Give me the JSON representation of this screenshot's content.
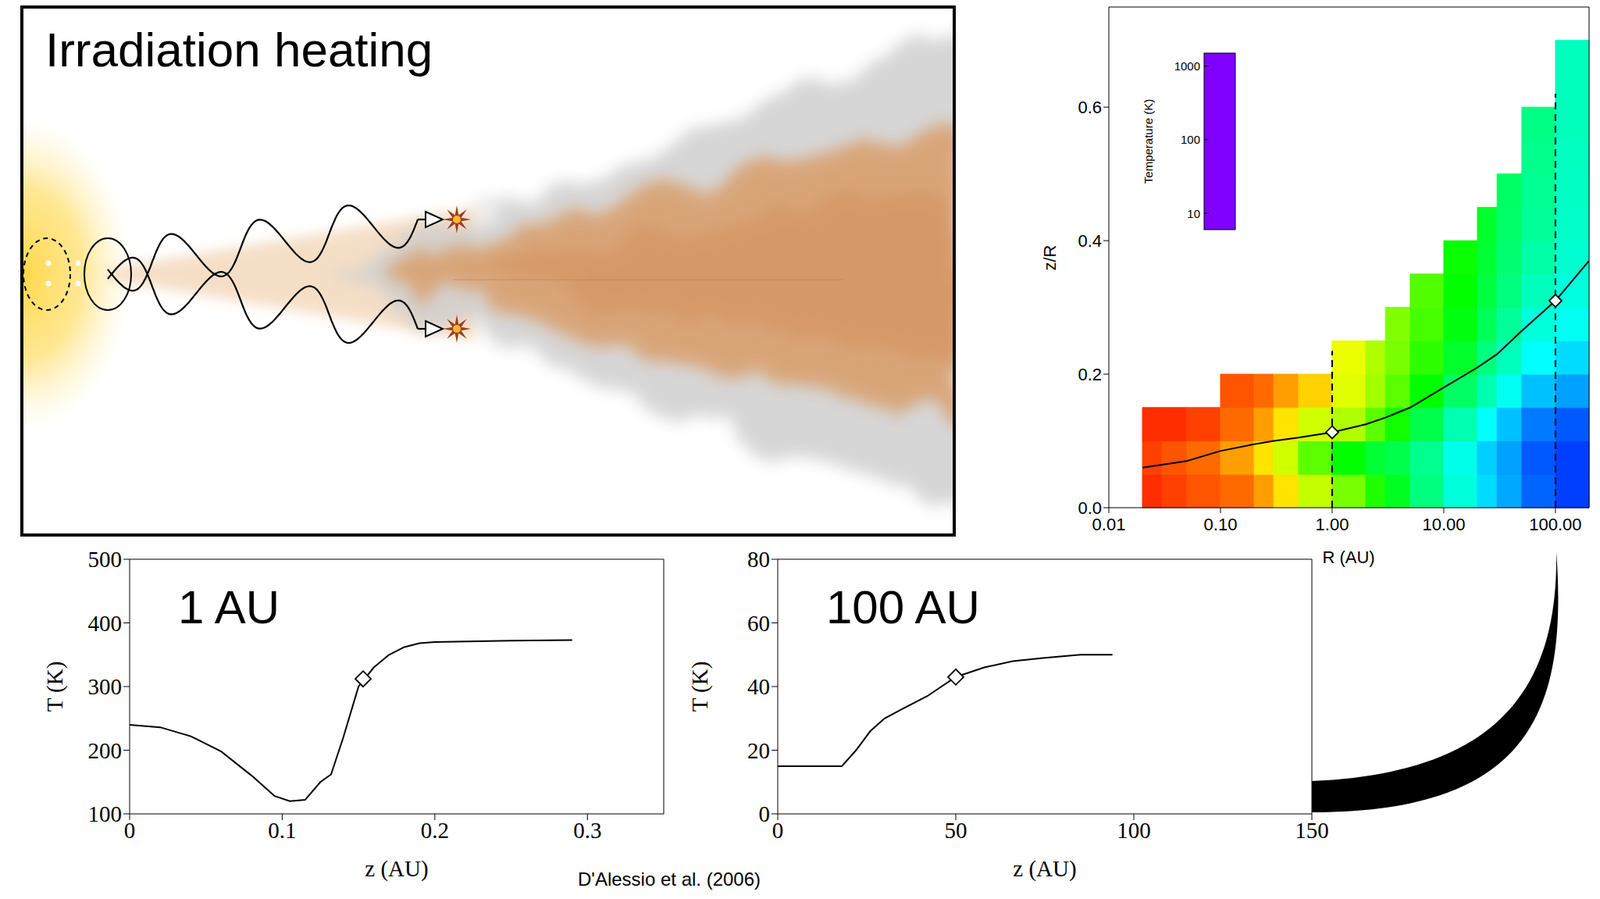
{
  "illustration": {
    "title": "Irradiation heating"
  },
  "citation": "D'Alessio et al. (2006)",
  "chart_data": [
    {
      "type": "heatmap",
      "x_label": "R (AU)",
      "y_label": "z/R",
      "log": "x",
      "xlim": [
        0.01,
        200
      ],
      "xticks": [
        0.01,
        {
          "value": 0.1,
          "label": "0.10"
        },
        {
          "value": 1,
          "label": "1.00"
        },
        {
          "value": 10,
          "label": "10.00"
        },
        {
          "value": 100,
          "label": "100.00"
        }
      ],
      "ylim": [
        0,
        0.75
      ],
      "yticks": [
        {
          "value": 0,
          "label": "0.0"
        },
        0.2,
        0.4,
        0.6
      ],
      "cells": {
        "r_edges": [
          0.02,
          0.03,
          0.05,
          0.1,
          0.2,
          0.3,
          0.5,
          1,
          2,
          3,
          5,
          10,
          20,
          30,
          50,
          100,
          200
        ],
        "z_edges": [
          0,
          0.05,
          0.1,
          0.15,
          0.2,
          0.25,
          0.3,
          0.35,
          0.4,
          0.45,
          0.5,
          0.55,
          0.6,
          0.65,
          0.7,
          0.75
        ],
        "temperature": [
          [
            1200,
            1100,
            1200
          ],
          [
            1100,
            1000,
            1200
          ],
          [
            1000,
            900,
            1100
          ],
          [
            900,
            700,
            900,
            1000
          ],
          [
            700,
            500,
            700,
            900
          ],
          [
            500,
            350,
            500,
            700
          ],
          [
            330,
            200,
            350,
            550
          ],
          [
            230,
            130,
            300,
            380,
            400
          ],
          [
            150,
            100,
            200,
            280,
            300
          ],
          [
            110,
            90,
            140,
            200,
            230,
            240
          ],
          [
            70,
            65,
            90,
            130,
            160,
            180,
            190
          ],
          [
            45,
            42,
            55,
            80,
            105,
            120,
            130,
            135
          ],
          [
            32,
            30,
            38,
            55,
            70,
            85,
            95,
            100,
            105
          ],
          [
            25,
            24,
            28,
            40,
            52,
            62,
            70,
            75,
            78,
            80
          ],
          [
            18,
            17,
            20,
            28,
            38,
            45,
            52,
            58,
            62,
            64,
            66,
            68
          ],
          [
            15,
            15,
            17,
            24,
            32,
            40,
            44,
            47,
            49,
            50,
            51,
            52,
            52,
            52
          ]
        ]
      },
      "colorbar": {
        "label": "Temperature (K)",
        "range": [
          6,
          1500
        ],
        "ticks": [
          10,
          100,
          1000
        ]
      },
      "series": [
        {
          "type": "line",
          "color": "#000000",
          "line_style": "solid",
          "x": [
            0.02,
            0.05,
            0.1,
            0.2,
            0.3,
            0.5,
            1,
            2,
            3,
            5,
            10,
            20,
            30,
            50,
            100,
            200
          ],
          "values": [
            0.06,
            0.07,
            0.085,
            0.095,
            0.1,
            0.105,
            0.113,
            0.125,
            0.135,
            0.15,
            0.18,
            0.21,
            0.23,
            0.265,
            0.31,
            0.37
          ]
        },
        {
          "type": "line",
          "color": "#000000",
          "line_style": "dashed",
          "x": [
            1,
            1
          ],
          "values": [
            0,
            0.235
          ]
        },
        {
          "type": "line",
          "color": "#000000",
          "line_style": "dashed",
          "x": [
            100,
            100
          ],
          "values": [
            0,
            0.62
          ]
        },
        {
          "type": "scatter",
          "marker": "diamond",
          "color": "#000000",
          "x": [
            1,
            100
          ],
          "values": [
            0.113,
            0.31
          ]
        }
      ]
    },
    {
      "type": "line",
      "title": "1 AU",
      "x_label": "z (AU)",
      "y_label": "T (K)",
      "xlim": [
        0,
        0.35
      ],
      "xticks": [
        0,
        0.1,
        0.2,
        0.3
      ],
      "ylim": [
        100,
        500
      ],
      "yticks": [
        100,
        200,
        300,
        400,
        500
      ],
      "series": [
        {
          "type": "line",
          "color": "#000000",
          "line_style": "solid",
          "x": [
            0,
            0.02,
            0.04,
            0.06,
            0.08,
            0.095,
            0.105,
            0.115,
            0.125,
            0.132,
            0.14,
            0.15,
            0.16,
            0.17,
            0.18,
            0.19,
            0.2,
            0.25,
            0.29
          ],
          "values": [
            240,
            236,
            222,
            198,
            160,
            128,
            120,
            122,
            150,
            162,
            220,
            300,
            330,
            350,
            362,
            368,
            370,
            372,
            373
          ]
        },
        {
          "type": "scatter",
          "marker": "diamond",
          "color": "#000000",
          "x": [
            0.153
          ],
          "values": [
            312
          ]
        }
      ]
    },
    {
      "type": "line",
      "title": "100 AU",
      "x_label": "z (AU)",
      "y_label": "T (K)",
      "xlim": [
        0,
        150
      ],
      "xticks": [
        0,
        50,
        100,
        150
      ],
      "ylim": [
        0,
        80
      ],
      "yticks": [
        0,
        20,
        40,
        60,
        80
      ],
      "series": [
        {
          "type": "line",
          "color": "#000000",
          "line_style": "solid",
          "x": [
            0,
            18,
            22,
            26,
            30,
            35,
            42,
            50,
            58,
            66,
            75,
            85,
            94
          ],
          "values": [
            15,
            15,
            20,
            26,
            30,
            33,
            37,
            43,
            46,
            48,
            49,
            50,
            50
          ]
        },
        {
          "type": "scatter",
          "marker": "diamond",
          "color": "#000000",
          "x": [
            50
          ],
          "values": [
            43
          ]
        }
      ]
    }
  ]
}
